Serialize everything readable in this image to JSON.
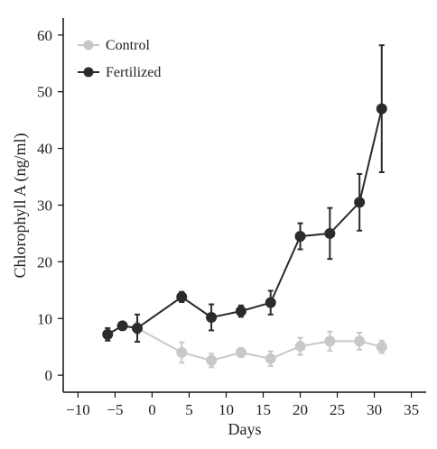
{
  "chart_data": {
    "type": "line",
    "title": "",
    "xlabel": "Days",
    "ylabel": "Chlorophyll A (ng/ml)",
    "xlim": [
      -12,
      37
    ],
    "ylim": [
      -3,
      63
    ],
    "xticks": [
      -10,
      -5,
      0,
      5,
      10,
      15,
      20,
      25,
      30,
      35
    ],
    "yticks": [
      0,
      10,
      20,
      30,
      40,
      50,
      60
    ],
    "xtick_labels": [
      "−10",
      "−5",
      "0",
      "5",
      "10",
      "15",
      "20",
      "25",
      "30",
      "35"
    ],
    "ytick_labels": [
      "0",
      "10",
      "20",
      "30",
      "40",
      "50",
      "60"
    ],
    "grid": false,
    "legend": "top-left",
    "series": [
      {
        "name": "Control",
        "color": "#c8c8c8",
        "marker": "circle",
        "x": [
          -6,
          -4,
          -2,
          4,
          8,
          12,
          16,
          20,
          24,
          28,
          31
        ],
        "y": [
          7.2,
          8.7,
          8.3,
          4.0,
          2.6,
          4.0,
          2.9,
          5.1,
          6.0,
          6.0,
          5.0
        ],
        "err": [
          1.1,
          0.4,
          1.0,
          1.8,
          1.2,
          0.8,
          1.3,
          1.5,
          1.7,
          1.5,
          1.1
        ]
      },
      {
        "name": "Fertilized",
        "color": "#2b2b2b",
        "marker": "circle",
        "x": [
          -6,
          -4,
          -2,
          4,
          8,
          12,
          16,
          20,
          24,
          28,
          31
        ],
        "y": [
          7.2,
          8.7,
          8.3,
          13.8,
          10.2,
          11.3,
          12.8,
          24.5,
          25.0,
          30.5,
          47.0
        ],
        "err": [
          1.1,
          0.4,
          2.4,
          0.9,
          2.3,
          1.0,
          2.1,
          2.3,
          4.5,
          5.0,
          11.2
        ]
      }
    ]
  }
}
